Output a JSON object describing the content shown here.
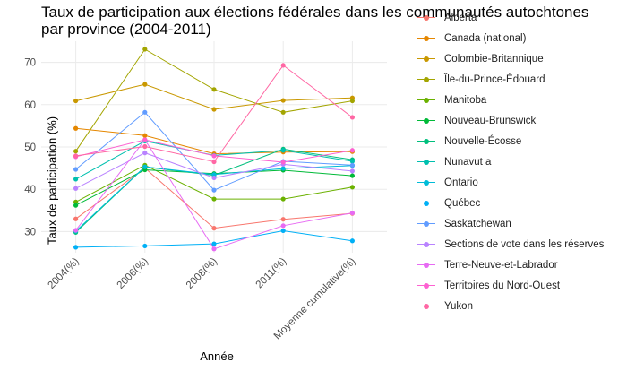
{
  "chart_data": {
    "type": "line",
    "title": "Taux de participation aux élections fédérales dans les communautés autochtones\npar province (2004-2011)",
    "xlabel": "Année",
    "ylabel": "Taux de participation (%)",
    "categories": [
      "2004(%)",
      "2006(%)",
      "2008(%)",
      "2011(%)",
      "Moyenne cumulative(%)"
    ],
    "y_ticks": [
      30,
      40,
      50,
      60,
      70
    ],
    "ylim": [
      25,
      75
    ],
    "grid": true,
    "legend_position": "right",
    "series": [
      {
        "name": "Alberta",
        "color": "#F8766D",
        "values": [
          33.0,
          45.0,
          30.8,
          32.9,
          34.3
        ]
      },
      {
        "name": "Canada (national)",
        "color": "#E58700",
        "values": [
          54.4,
          52.7,
          48.4,
          48.8,
          48.9
        ]
      },
      {
        "name": "Colombie-Britannique",
        "color": "#C99800",
        "values": [
          60.9,
          64.8,
          58.9,
          61.0,
          61.6
        ]
      },
      {
        "name": "Île-du-Prince-Édouard",
        "color": "#A3A500",
        "values": [
          49.0,
          73.1,
          63.6,
          58.2,
          60.9
        ]
      },
      {
        "name": "Manitoba",
        "color": "#6BB100",
        "values": [
          37.0,
          45.7,
          37.7,
          37.7,
          40.5
        ]
      },
      {
        "name": "Nouveau-Brunswick",
        "color": "#00BA38",
        "values": [
          36.2,
          44.6,
          43.7,
          44.5,
          43.2
        ]
      },
      {
        "name": "Nouvelle-Écosse",
        "color": "#00BF7D",
        "values": [
          29.8,
          45.3,
          43.3,
          49.5,
          47.0
        ]
      },
      {
        "name": "Nunavut a",
        "color": "#00C0AF",
        "values": [
          42.4,
          51.4,
          48.0,
          49.2,
          46.6
        ]
      },
      {
        "name": "Ontario",
        "color": "#00BCD8",
        "values": [
          30.1,
          45.3,
          43.5,
          44.9,
          45.6
        ]
      },
      {
        "name": "Québec",
        "color": "#00B0F6",
        "values": [
          26.3,
          26.6,
          27.1,
          30.2,
          27.8
        ]
      },
      {
        "name": "Saskatchewan",
        "color": "#619CFF",
        "values": [
          44.7,
          58.2,
          39.8,
          46.6,
          45.7
        ]
      },
      {
        "name": "Sections de vote dans les réserves",
        "color": "#B983FF",
        "values": [
          40.2,
          48.6,
          42.7,
          45.9,
          44.3
        ]
      },
      {
        "name": "Terre-Neuve-et-Labrador",
        "color": "#E76BF3",
        "values": [
          30.3,
          51.7,
          25.9,
          31.4,
          34.4
        ]
      },
      {
        "name": "Territoires du Nord-Ouest",
        "color": "#FD61D1",
        "values": [
          47.7,
          51.7,
          47.9,
          46.4,
          49.2
        ]
      },
      {
        "name": "Yukon",
        "color": "#FF67A4",
        "values": [
          47.9,
          50.1,
          46.5,
          69.3,
          57.0
        ]
      }
    ]
  }
}
